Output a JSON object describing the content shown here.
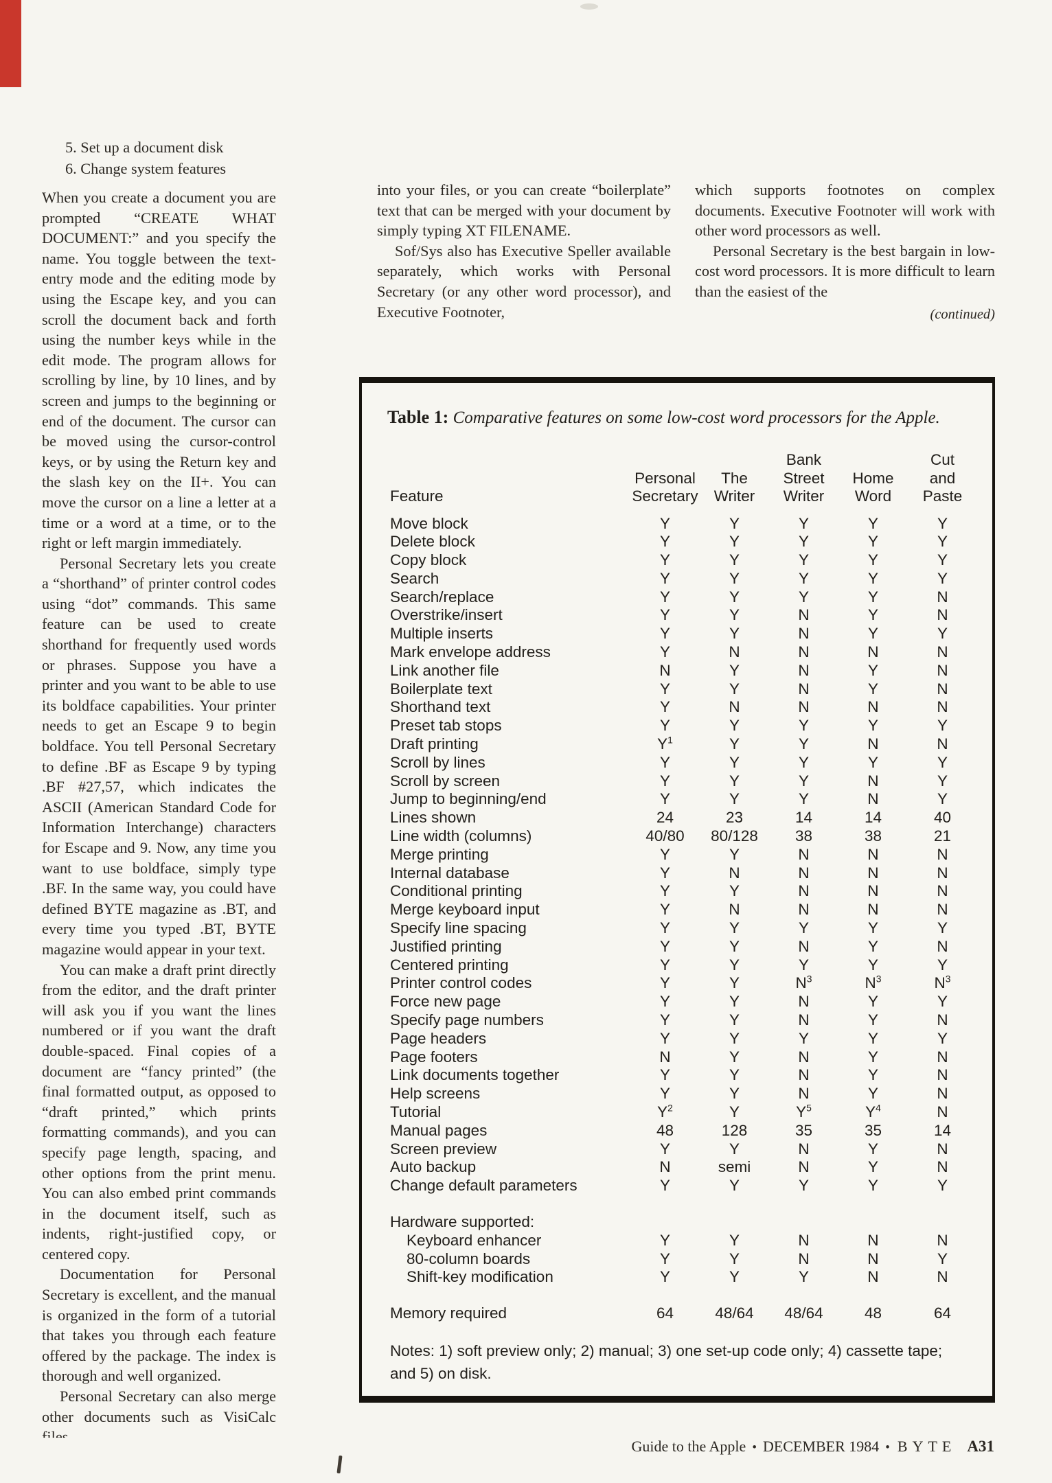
{
  "page": {
    "background": "#f6f5f0",
    "accent_red": "#c9372c",
    "ink": "#2b2722"
  },
  "columns": {
    "col1": {
      "list_items": [
        "5. Set up a document disk",
        "6. Change system features"
      ],
      "paragraphs": [
        {
          "indent": false,
          "text": "When you create a document you are prompted “CREATE WHAT DOCUMENT:” and you specify the name. You toggle between the text-entry mode and the editing mode by using the Escape key, and you can scroll the document back and forth using the number keys while in the edit mode. The program allows for scrolling by line, by 10 lines, and by screen and jumps to the beginning or end of the document. The cursor can be moved using the cursor-control keys, or by using the Return key and the slash key on the II+. You can move the cursor on a line a letter at a time or a word at a time, or to the right or left margin immediately."
        },
        {
          "indent": true,
          "text": "Personal Secretary lets you create a “shorthand” of printer control codes using “dot” commands. This same feature can be used to create shorthand for frequently used words or phrases. Suppose you have a printer and you want to be able to use its boldface capabilities. Your printer needs to get an Escape 9 to begin boldface. You tell Personal Secretary to define .BF as Escape 9 by typing .BF #27,57, which indicates the ASCII (American Standard Code for Information Interchange) characters for Escape and 9. Now, any time you want to use boldface, simply type .BF. In the same way, you could have defined BYTE magazine as .BT, and every time you typed .BT, BYTE magazine would appear in your text."
        },
        {
          "indent": true,
          "text": "You can make a draft print directly from the editor, and the draft printer will ask you if you want the lines numbered or if you want the draft double-spaced. Final copies of a document are “fancy printed” (the final formatted output, as opposed to “draft printed,” which prints formatting commands), and you can specify page length, spacing, and other options from the print menu. You can also embed print commands in the document itself, such as indents, right-justified copy, or centered copy."
        },
        {
          "indent": true,
          "text": "Documentation for Personal Secretary is excellent, and the manual is organized in the form of a tutorial that takes you through each feature offered by the package. The index is thorough and well organized."
        },
        {
          "indent": true,
          "text": "Personal Secretary can also merge other documents such as VisiCalc files"
        }
      ]
    },
    "col2": {
      "paragraphs": [
        {
          "indent": false,
          "text": "into your files, or you can create “boilerplate” text that can be merged with your document by simply typing XT FILENAME."
        },
        {
          "indent": true,
          "text": "Sof/Sys also has Executive Speller available separately, which works with Personal Secretary (or any other word processor), and Executive Footnoter,"
        }
      ]
    },
    "col3": {
      "paragraphs": [
        {
          "indent": false,
          "text": "which supports footnotes on complex documents. Executive Footnoter will work with other word processors as well."
        },
        {
          "indent": true,
          "text": "Personal Secretary is the best bargain in low-cost word processors. It is more difficult to learn than the easiest of the"
        }
      ],
      "continued": "(continued)"
    }
  },
  "table": {
    "title_label": "Table 1:",
    "title_text": "Comparative features on some low-cost word processors for the Apple.",
    "columns": [
      "Feature",
      "Personal\nSecretary",
      "The\nWriter",
      "Bank\nStreet\nWriter",
      "Home\nWord",
      "Cut\nand\nPaste"
    ],
    "rows": [
      {
        "f": "Move block",
        "v": [
          "Y",
          "Y",
          "Y",
          "Y",
          "Y"
        ]
      },
      {
        "f": "Delete block",
        "v": [
          "Y",
          "Y",
          "Y",
          "Y",
          "Y"
        ]
      },
      {
        "f": "Copy block",
        "v": [
          "Y",
          "Y",
          "Y",
          "Y",
          "Y"
        ]
      },
      {
        "f": "Search",
        "v": [
          "Y",
          "Y",
          "Y",
          "Y",
          "Y"
        ]
      },
      {
        "f": "Search/replace",
        "v": [
          "Y",
          "Y",
          "Y",
          "Y",
          "N"
        ]
      },
      {
        "f": "Overstrike/insert",
        "v": [
          "Y",
          "Y",
          "N",
          "Y",
          "N"
        ]
      },
      {
        "f": "Multiple inserts",
        "v": [
          "Y",
          "Y",
          "N",
          "Y",
          "Y"
        ]
      },
      {
        "f": "Mark envelope address",
        "v": [
          "Y",
          "N",
          "N",
          "N",
          "N"
        ]
      },
      {
        "f": "Link another file",
        "v": [
          "N",
          "Y",
          "N",
          "Y",
          "N"
        ]
      },
      {
        "f": "Boilerplate text",
        "v": [
          "Y",
          "Y",
          "N",
          "Y",
          "N"
        ]
      },
      {
        "f": "Shorthand text",
        "v": [
          "Y",
          "N",
          "N",
          "N",
          "N"
        ]
      },
      {
        "f": "Preset tab stops",
        "v": [
          "Y",
          "Y",
          "Y",
          "Y",
          "Y"
        ]
      },
      {
        "f": "Draft printing",
        "v": [
          "Y1",
          "Y",
          "Y",
          "N",
          "N"
        ]
      },
      {
        "f": "Scroll by lines",
        "v": [
          "Y",
          "Y",
          "Y",
          "Y",
          "Y"
        ]
      },
      {
        "f": "Scroll by screen",
        "v": [
          "Y",
          "Y",
          "Y",
          "N",
          "Y"
        ]
      },
      {
        "f": "Jump to beginning/end",
        "v": [
          "Y",
          "Y",
          "Y",
          "N",
          "Y"
        ]
      },
      {
        "f": "Lines shown",
        "v": [
          "24",
          "23",
          "14",
          "14",
          "40"
        ]
      },
      {
        "f": "Line width (columns)",
        "v": [
          "40/80",
          "80/128",
          "38",
          "38",
          "21"
        ]
      },
      {
        "f": "Merge printing",
        "v": [
          "Y",
          "Y",
          "N",
          "N",
          "N"
        ]
      },
      {
        "f": "Internal database",
        "v": [
          "Y",
          "N",
          "N",
          "N",
          "N"
        ]
      },
      {
        "f": "Conditional printing",
        "v": [
          "Y",
          "Y",
          "N",
          "N",
          "N"
        ]
      },
      {
        "f": "Merge keyboard input",
        "v": [
          "Y",
          "N",
          "N",
          "N",
          "N"
        ]
      },
      {
        "f": "Specify line spacing",
        "v": [
          "Y",
          "Y",
          "Y",
          "Y",
          "Y"
        ]
      },
      {
        "f": "Justified printing",
        "v": [
          "Y",
          "Y",
          "N",
          "Y",
          "N"
        ]
      },
      {
        "f": "Centered printing",
        "v": [
          "Y",
          "Y",
          "Y",
          "Y",
          "Y"
        ]
      },
      {
        "f": "Printer control codes",
        "v": [
          "Y",
          "Y",
          "N3",
          "N3",
          "N3"
        ]
      },
      {
        "f": "Force new page",
        "v": [
          "Y",
          "Y",
          "N",
          "Y",
          "Y"
        ]
      },
      {
        "f": "Specify page numbers",
        "v": [
          "Y",
          "Y",
          "N",
          "Y",
          "N"
        ]
      },
      {
        "f": "Page headers",
        "v": [
          "Y",
          "Y",
          "Y",
          "Y",
          "Y"
        ]
      },
      {
        "f": "Page footers",
        "v": [
          "N",
          "Y",
          "N",
          "Y",
          "N"
        ]
      },
      {
        "f": "Link documents together",
        "v": [
          "Y",
          "Y",
          "N",
          "Y",
          "N"
        ]
      },
      {
        "f": "Help screens",
        "v": [
          "Y",
          "Y",
          "N",
          "Y",
          "N"
        ]
      },
      {
        "f": "Tutorial",
        "v": [
          "Y2",
          "Y",
          "Y5",
          "Y4",
          "N"
        ]
      },
      {
        "f": "Manual pages",
        "v": [
          "48",
          "128",
          "35",
          "35",
          "14"
        ]
      },
      {
        "f": "Screen preview",
        "v": [
          "Y",
          "Y",
          "N",
          "Y",
          "N"
        ]
      },
      {
        "f": "Auto backup",
        "v": [
          "N",
          "semi",
          "N",
          "Y",
          "N"
        ]
      },
      {
        "f": "Change default parameters",
        "v": [
          "Y",
          "Y",
          "Y",
          "Y",
          "Y"
        ]
      },
      {
        "type": "spacer"
      },
      {
        "f": "Hardware supported:",
        "v": [],
        "type": "section"
      },
      {
        "f": "Keyboard enhancer",
        "v": [
          "Y",
          "Y",
          "N",
          "N",
          "N"
        ],
        "indent": true
      },
      {
        "f": "80-column boards",
        "v": [
          "Y",
          "Y",
          "N",
          "N",
          "Y"
        ],
        "indent": true
      },
      {
        "f": "Shift-key modification",
        "v": [
          "Y",
          "Y",
          "Y",
          "N",
          "N"
        ],
        "indent": true
      },
      {
        "type": "spacer"
      },
      {
        "f": "Memory required",
        "v": [
          "64",
          "48/64",
          "48/64",
          "48",
          "64"
        ]
      }
    ],
    "notes": "Notes: 1) soft preview only; 2) manual; 3) one set-up code only; 4) cassette tape; and 5) on disk."
  },
  "footer": {
    "left": "Guide to the Apple",
    "separator": "•",
    "date": "DECEMBER 1984",
    "magazine": "BYTE",
    "page_number": "A31"
  }
}
